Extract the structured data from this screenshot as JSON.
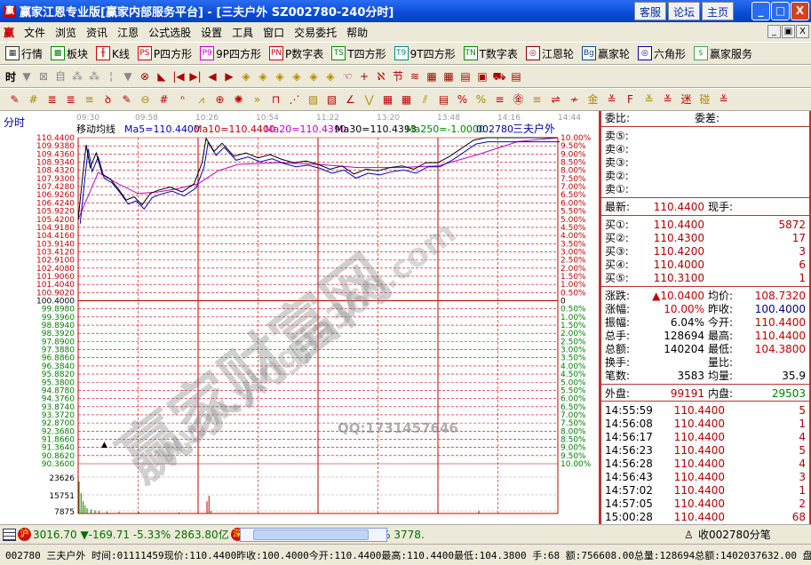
{
  "window": {
    "title": "赢家江恩专业版[赢家内部服务平台] - [三夫户外   SZ002780-240分时]",
    "logo": "赢",
    "buttons": [
      "客服",
      "论坛",
      "主页"
    ],
    "controls": [
      "_",
      "□",
      "X"
    ]
  },
  "menu": {
    "logo": "赢",
    "items": [
      "文件",
      "浏览",
      "资讯",
      "江恩",
      "公式选股",
      "设置",
      "工具",
      "窗口",
      "交易委托",
      "帮助"
    ],
    "mdi": [
      "_",
      "▣",
      "X"
    ]
  },
  "toolbar1": [
    {
      "icon": "grid-icon",
      "label": "行情"
    },
    {
      "icon": "blocks-icon",
      "label": "板块"
    },
    {
      "icon": "candle-icon",
      "label": "K线"
    },
    {
      "icon": "ps-icon",
      "badge": "PS",
      "label": "P四方形"
    },
    {
      "icon": "p9-icon",
      "badge": "P9",
      "label": "9P四方形"
    },
    {
      "icon": "pn-icon",
      "badge": "PN",
      "label": "P数字表"
    },
    {
      "icon": "ts-icon",
      "badge": "TS",
      "label": "T四方形"
    },
    {
      "icon": "t9-icon",
      "badge": "T9",
      "label": "9T四方形"
    },
    {
      "icon": "tn-icon",
      "badge": "TN",
      "label": "T数字表"
    },
    {
      "icon": "wheel-icon",
      "badge": "◎",
      "label": "江恩轮"
    },
    {
      "icon": "bg-icon",
      "badge": "Bg",
      "label": "赢家轮"
    },
    {
      "icon": "hexagon-icon",
      "badge": "◎",
      "label": "六角形"
    },
    {
      "icon": "dollar-icon",
      "badge": "$",
      "label": "赢家服务"
    }
  ],
  "toolbar2": {
    "period": "时",
    "icons": [
      "▼",
      "⊠",
      "自",
      "⁂",
      "⁂",
      "¦",
      "▼",
      "⊗",
      "◣",
      "|◀",
      "▶|",
      "◀",
      "▶",
      "◈",
      "◈",
      "◈",
      "◈",
      "◈",
      "◈",
      "☜",
      "+",
      "ℵ",
      "节",
      "≋",
      "▦",
      "▦",
      "▤",
      "▣",
      "⛟",
      "▤"
    ]
  },
  "toolbar3": {
    "icons": [
      "✎",
      "#",
      "≣",
      "≣",
      "≡",
      "ꝺ",
      "✎",
      "⊖",
      "#",
      "ⁿ",
      "⩘",
      "⊕",
      "✺",
      "»",
      "⊓",
      "⋰",
      "▨",
      "▧",
      "∠",
      "⋁",
      "▦",
      "▦",
      "⫽",
      "▤",
      "%",
      "%",
      "≡",
      "㊎",
      "≡",
      "⇌",
      "≁",
      "金",
      "≚",
      "F",
      "≚",
      "≚",
      "迷",
      "碰",
      "≚"
    ]
  },
  "chart": {
    "mode_label": "分时",
    "times": [
      "09:30",
      "09:58",
      "10:26",
      "10:54",
      "11:22",
      "13:20",
      "13:48",
      "14:16",
      "14:44"
    ],
    "ma_title": "移动均线",
    "ma": [
      {
        "label": "Ma5=110.4400",
        "color": "#0000c0"
      },
      {
        "label": "Ma10=110.4400",
        "color": "#c00000"
      },
      {
        "label": "Ma20=110.4390",
        "color": "#c000c0"
      },
      {
        "label": "Ma30=110.4393",
        "color": "#000000"
      },
      {
        "label": "Ma250=-1.0000",
        "color": "#008000"
      }
    ],
    "code_suffix": "002780",
    "stock_name": "三夫户外",
    "price_labels": [
      "110.4400",
      "109.9380",
      "109.4360",
      "108.9340",
      "108.4320",
      "107.9300",
      "107.4280",
      "106.9260",
      "106.4240",
      "105.9220",
      "105.4200",
      "104.9180",
      "104.4160",
      "103.9140",
      "103.4120",
      "102.9100",
      "102.4080",
      "101.9060",
      "101.4040",
      "100.9020",
      "100.4000",
      "99.8980",
      "99.3960",
      "98.8940",
      "98.3920",
      "97.8900",
      "97.3880",
      "96.8860",
      "96.3840",
      "95.8820",
      "95.3800",
      "94.8780",
      "94.3760",
      "93.8740",
      "93.3720",
      "92.8700",
      "92.3680",
      "91.8660",
      "91.3640",
      "90.8620",
      "90.3600"
    ],
    "pct_labels": [
      "10.00%",
      "9.50%",
      "9.00%",
      "8.50%",
      "8.00%",
      "7.50%",
      "7.00%",
      "6.50%",
      "6.00%",
      "5.50%",
      "5.00%",
      "4.50%",
      "4.00%",
      "3.50%",
      "3.00%",
      "2.50%",
      "2.00%",
      "1.50%",
      "1.00%",
      "0.50%",
      "0",
      "0.50%",
      "1.00%",
      "1.50%",
      "2.00%",
      "2.50%",
      "3.00%",
      "3.50%",
      "4.00%",
      "4.50%",
      "5.00%",
      "5.50%",
      "6.00%",
      "6.50%",
      "7.00%",
      "7.50%",
      "8.00%",
      "8.50%",
      "9.00%",
      "9.50%",
      "10.00%"
    ],
    "vol_labels": [
      "23626",
      "15751",
      "7875"
    ],
    "colors": {
      "up": "#c00000",
      "down": "#008000",
      "grid": "#c00000"
    },
    "watermark": "赢家财富网",
    "watermark_url": "www.yingjia360.com",
    "qq": "QQ:1731457646"
  },
  "chart_data": {
    "type": "line",
    "ylim": [
      90.36,
      110.44
    ],
    "prev_close": 100.4,
    "price": [
      [
        0,
        105.4
      ],
      [
        2,
        107.8
      ],
      [
        4,
        110.0
      ],
      [
        6,
        108.6
      ],
      [
        9,
        109.5
      ],
      [
        12,
        108.2
      ],
      [
        16,
        107.9
      ],
      [
        20,
        107.3
      ],
      [
        24,
        106.6
      ],
      [
        28,
        106.8
      ],
      [
        32,
        106.3
      ],
      [
        36,
        107.0
      ],
      [
        40,
        107.2
      ],
      [
        46,
        107.4
      ],
      [
        52,
        107.1
      ],
      [
        58,
        107.6
      ],
      [
        62,
        108.9
      ],
      [
        64,
        110.4
      ],
      [
        68,
        109.6
      ],
      [
        72,
        110.1
      ],
      [
        78,
        109.3
      ],
      [
        84,
        109.5
      ],
      [
        90,
        109.2
      ],
      [
        96,
        109.4
      ],
      [
        102,
        109.1
      ],
      [
        108,
        108.9
      ],
      [
        114,
        109.0
      ],
      [
        120,
        108.8
      ],
      [
        126,
        108.5
      ],
      [
        132,
        108.7
      ],
      [
        138,
        108.2
      ],
      [
        144,
        108.5
      ],
      [
        150,
        108.4
      ],
      [
        156,
        108.6
      ],
      [
        162,
        108.7
      ],
      [
        168,
        108.5
      ],
      [
        174,
        108.9
      ],
      [
        180,
        108.9
      ],
      [
        186,
        109.3
      ],
      [
        192,
        109.8
      ],
      [
        198,
        110.3
      ],
      [
        204,
        110.44
      ],
      [
        240,
        110.44
      ]
    ],
    "avg": [
      [
        0,
        105.4
      ],
      [
        10,
        108.3
      ],
      [
        20,
        107.6
      ],
      [
        30,
        107.0
      ],
      [
        40,
        107.1
      ],
      [
        50,
        107.3
      ],
      [
        60,
        107.6
      ],
      [
        70,
        108.4
      ],
      [
        80,
        108.8
      ],
      [
        100,
        108.9
      ],
      [
        120,
        108.8
      ],
      [
        140,
        108.6
      ],
      [
        160,
        108.6
      ],
      [
        180,
        108.7
      ],
      [
        200,
        109.4
      ],
      [
        220,
        110.2
      ],
      [
        240,
        110.44
      ]
    ],
    "volume": [
      [
        0,
        23626
      ],
      [
        1,
        15000
      ],
      [
        2,
        9000
      ],
      [
        3,
        6000
      ],
      [
        4,
        4000
      ],
      [
        6,
        3000
      ],
      [
        8,
        2500
      ],
      [
        10,
        2000
      ],
      [
        14,
        1500
      ],
      [
        20,
        1200
      ],
      [
        30,
        1000
      ],
      [
        50,
        900
      ],
      [
        64,
        9000
      ],
      [
        65,
        13000
      ],
      [
        66,
        2000
      ],
      [
        80,
        600
      ],
      [
        200,
        1800
      ],
      [
        201,
        300
      ]
    ],
    "vol_max": 31500
  },
  "panel": {
    "top": {
      "k1": "委比:",
      "k2": "委差:"
    },
    "sell": [
      "卖⑤:",
      "卖④:",
      "卖③:",
      "卖②:",
      "卖①:"
    ],
    "latest": {
      "k1": "最新:",
      "v1": "110.4400",
      "k2": "现手:"
    },
    "buy": [
      {
        "k": "买①:",
        "p": "110.4400",
        "q": "5872"
      },
      {
        "k": "买②:",
        "p": "110.4300",
        "q": "17"
      },
      {
        "k": "买③:",
        "p": "110.4200",
        "q": "3"
      },
      {
        "k": "买④:",
        "p": "110.4000",
        "q": "6"
      },
      {
        "k": "买⑤:",
        "p": "110.3100",
        "q": "1"
      }
    ],
    "stats": [
      {
        "k1": "涨跌:",
        "v1": "▲10.0400",
        "c1": "#c00000",
        "k2": "均价:",
        "v2": "108.7320",
        "c2": "#c00000"
      },
      {
        "k1": "涨幅:",
        "v1": "10.00%",
        "c1": "#c00000",
        "k2": "昨收:",
        "v2": "100.4000",
        "c2": "#000080"
      },
      {
        "k1": "振幅:",
        "v1": "6.04%",
        "c1": "#000",
        "k2": "今开:",
        "v2": "110.4400",
        "c2": "#c00000"
      },
      {
        "k1": "总手:",
        "v1": "128694",
        "c1": "#000",
        "k2": "最高:",
        "v2": "110.4400",
        "c2": "#c00000"
      },
      {
        "k1": "总额:",
        "v1": "140204",
        "c1": "#000",
        "k2": "最低:",
        "v2": "104.3800",
        "c2": "#c00000"
      },
      {
        "k1": "换手:",
        "v1": "",
        "c1": "#000",
        "k2": "量比:",
        "v2": "",
        "c2": "#000"
      },
      {
        "k1": "笔数:",
        "v1": "3583",
        "c1": "#000",
        "k2": "均量:",
        "v2": "35.9",
        "c2": "#000"
      }
    ],
    "outer": {
      "k1": "外盘:",
      "v1": "99191",
      "k2": "内盘:",
      "v2": "29503"
    },
    "ticks": [
      {
        "t": "14:55:59",
        "p": "110.4400",
        "q": "5"
      },
      {
        "t": "14:56:08",
        "p": "110.4400",
        "q": "1"
      },
      {
        "t": "14:56:17",
        "p": "110.4400",
        "q": "4"
      },
      {
        "t": "14:56:23",
        "p": "110.4400",
        "q": "5"
      },
      {
        "t": "14:56:28",
        "p": "110.4400",
        "q": "4"
      },
      {
        "t": "14:56:43",
        "p": "110.4400",
        "q": "3"
      },
      {
        "t": "14:57:02",
        "p": "110.4400",
        "q": "1"
      },
      {
        "t": "14:57:05",
        "p": "110.4400",
        "q": "2"
      },
      {
        "t": "15:00:28",
        "p": "110.4400",
        "q": "68"
      },
      {
        "t": "15:00:28",
        "p": "110.4400",
        "q": "0"
      }
    ]
  },
  "status1": {
    "sh_badge": "沪",
    "sh": "3016.70 ▼-169.71 -5.33% 2863.80亿",
    "sz_badge": "深",
    "sz": "10212.46 ▼-676.45 -6.21% 3778.",
    "tick_label": "收002780分笔"
  },
  "status2": "002780 三夫户外 时间:01111459现价:110.4400昨收:100.4000今开:110.4400最高:110.4400最低:104.3800 手:68 额:756608.00总量:128694总额:1402037632.00 盘:0 校"
}
